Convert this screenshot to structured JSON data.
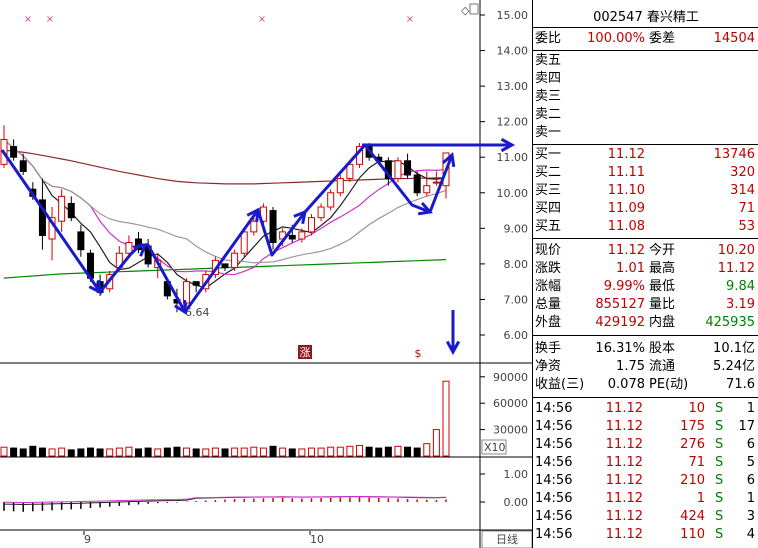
{
  "stock": {
    "code": "002547",
    "name": "春兴精工"
  },
  "weibi": {
    "label": "委比",
    "value": "100.00%",
    "label2": "委差",
    "value2": "14504"
  },
  "sell": [
    {
      "label": "卖五"
    },
    {
      "label": "卖四"
    },
    {
      "label": "卖三"
    },
    {
      "label": "卖二"
    },
    {
      "label": "卖一"
    }
  ],
  "buy": [
    {
      "label": "买一",
      "price": "11.12",
      "vol": "13746"
    },
    {
      "label": "买二",
      "price": "11.11",
      "vol": "320"
    },
    {
      "label": "买三",
      "price": "11.10",
      "vol": "314"
    },
    {
      "label": "买四",
      "price": "11.09",
      "vol": "71"
    },
    {
      "label": "买五",
      "price": "11.08",
      "vol": "53"
    }
  ],
  "quote": [
    {
      "l1": "现价",
      "v1": "11.12",
      "l2": "今开",
      "v2": "10.20"
    },
    {
      "l1": "涨跌",
      "v1": "1.01",
      "l2": "最高",
      "v2": "11.12"
    },
    {
      "l1": "涨幅",
      "v1": "9.99%",
      "l2": "最低",
      "v2": "9.84"
    },
    {
      "l1": "总量",
      "v1": "855127",
      "l2": "量比",
      "v2": "3.19"
    },
    {
      "l1": "外盘",
      "v1": "429192",
      "l2": "内盘",
      "v2": "425935"
    }
  ],
  "fund": [
    {
      "l1": "换手",
      "v1": "16.31%",
      "l2": "股本",
      "v2": "10.1亿"
    },
    {
      "l1": "净资",
      "v1": "1.75",
      "l2": "流通",
      "v2": "5.24亿"
    },
    {
      "l1": "收益(三)",
      "v1": "0.078",
      "l2": "PE(动)",
      "v2": "71.6"
    }
  ],
  "ticks": [
    {
      "time": "14:56",
      "price": "11.12",
      "vol": "10",
      "side": "S",
      "n": "1"
    },
    {
      "time": "14:56",
      "price": "11.12",
      "vol": "175",
      "side": "S",
      "n": "17"
    },
    {
      "time": "14:56",
      "price": "11.12",
      "vol": "276",
      "side": "S",
      "n": "6"
    },
    {
      "time": "14:56",
      "price": "11.12",
      "vol": "71",
      "side": "S",
      "n": "5"
    },
    {
      "time": "14:56",
      "price": "11.12",
      "vol": "210",
      "side": "S",
      "n": "6"
    },
    {
      "time": "14:56",
      "price": "11.12",
      "vol": "1",
      "side": "S",
      "n": "1"
    },
    {
      "time": "14:56",
      "price": "11.12",
      "vol": "424",
      "side": "S",
      "n": "3"
    },
    {
      "time": "14:56",
      "price": "11.12",
      "vol": "110",
      "side": "S",
      "n": "4"
    }
  ],
  "price_axis": [
    "15.00",
    "14.00",
    "13.00",
    "12.00",
    "11.00",
    "10.00",
    "9.00",
    "8.00",
    "7.00",
    "6.00"
  ],
  "vol_axis": [
    "90000",
    "60000",
    "30000"
  ],
  "vol_unit": "X10",
  "macd_axis": [
    "1.00",
    "0.00"
  ],
  "x_axis": [
    "9",
    "10"
  ],
  "low_label": "6.64",
  "badges": [
    "涨",
    "$"
  ],
  "period_btn": "日线",
  "colors": {
    "up": "#d40000",
    "down": "#000000",
    "arrow": "#1a1acc"
  },
  "chart_data": {
    "type": "candlestick",
    "ylim": [
      6.0,
      15.0
    ],
    "candles": [
      {
        "o": 10.8,
        "h": 11.9,
        "l": 10.7,
        "c": 11.5
      },
      {
        "o": 11.3,
        "h": 11.5,
        "l": 10.9,
        "c": 11.0
      },
      {
        "o": 10.9,
        "h": 11.1,
        "l": 10.5,
        "c": 10.6
      },
      {
        "o": 10.1,
        "h": 10.3,
        "l": 9.8,
        "c": 9.9
      },
      {
        "o": 9.8,
        "h": 10.4,
        "l": 8.4,
        "c": 8.8
      },
      {
        "o": 8.7,
        "h": 9.6,
        "l": 8.1,
        "c": 9.3
      },
      {
        "o": 9.2,
        "h": 10.1,
        "l": 8.9,
        "c": 9.9
      },
      {
        "o": 9.7,
        "h": 9.9,
        "l": 9.2,
        "c": 9.3
      },
      {
        "o": 8.9,
        "h": 9.1,
        "l": 8.2,
        "c": 8.4
      },
      {
        "o": 8.3,
        "h": 8.4,
        "l": 7.5,
        "c": 7.6
      },
      {
        "o": 7.5,
        "h": 7.7,
        "l": 7.1,
        "c": 7.2
      },
      {
        "o": 7.3,
        "h": 7.8,
        "l": 7.2,
        "c": 7.7
      },
      {
        "o": 7.9,
        "h": 8.5,
        "l": 7.8,
        "c": 8.3
      },
      {
        "o": 8.3,
        "h": 8.8,
        "l": 8.2,
        "c": 8.6
      },
      {
        "o": 8.7,
        "h": 8.9,
        "l": 8.3,
        "c": 8.4
      },
      {
        "o": 8.5,
        "h": 8.7,
        "l": 7.9,
        "c": 8.0
      },
      {
        "o": 7.9,
        "h": 8.3,
        "l": 7.6,
        "c": 8.1
      },
      {
        "o": 7.5,
        "h": 7.6,
        "l": 7.0,
        "c": 7.1
      },
      {
        "o": 7.0,
        "h": 7.3,
        "l": 6.64,
        "c": 6.9
      },
      {
        "o": 6.9,
        "h": 7.6,
        "l": 6.8,
        "c": 7.5
      },
      {
        "o": 7.5,
        "h": 7.5,
        "l": 7.2,
        "c": 7.4
      },
      {
        "o": 7.3,
        "h": 7.8,
        "l": 7.2,
        "c": 7.7
      },
      {
        "o": 7.7,
        "h": 8.2,
        "l": 7.6,
        "c": 8.1
      },
      {
        "o": 8.0,
        "h": 8.0,
        "l": 7.8,
        "c": 7.9
      },
      {
        "o": 7.9,
        "h": 8.4,
        "l": 7.8,
        "c": 8.3
      },
      {
        "o": 8.3,
        "h": 9.0,
        "l": 8.2,
        "c": 8.9
      },
      {
        "o": 8.9,
        "h": 9.3,
        "l": 8.8,
        "c": 9.2
      },
      {
        "o": 9.2,
        "h": 9.7,
        "l": 9.1,
        "c": 9.6
      },
      {
        "o": 9.5,
        "h": 9.6,
        "l": 8.4,
        "c": 8.6
      },
      {
        "o": 8.7,
        "h": 9.0,
        "l": 8.5,
        "c": 8.9
      },
      {
        "o": 8.8,
        "h": 9.1,
        "l": 8.6,
        "c": 8.7
      },
      {
        "o": 8.7,
        "h": 9.0,
        "l": 8.6,
        "c": 8.9
      },
      {
        "o": 8.9,
        "h": 9.4,
        "l": 8.8,
        "c": 9.3
      },
      {
        "o": 9.3,
        "h": 9.7,
        "l": 9.2,
        "c": 9.6
      },
      {
        "o": 9.6,
        "h": 10.1,
        "l": 9.5,
        "c": 10.0
      },
      {
        "o": 10.0,
        "h": 10.5,
        "l": 9.9,
        "c": 10.4
      },
      {
        "o": 10.4,
        "h": 10.9,
        "l": 10.3,
        "c": 10.8
      },
      {
        "o": 10.8,
        "h": 11.4,
        "l": 10.7,
        "c": 11.3
      },
      {
        "o": 11.3,
        "h": 11.4,
        "l": 10.9,
        "c": 11.0
      },
      {
        "o": 11.0,
        "h": 11.1,
        "l": 10.8,
        "c": 10.9
      },
      {
        "o": 10.9,
        "h": 11.0,
        "l": 10.2,
        "c": 10.4
      },
      {
        "o": 10.4,
        "h": 11.0,
        "l": 10.3,
        "c": 10.9
      },
      {
        "o": 10.9,
        "h": 11.1,
        "l": 10.4,
        "c": 10.5
      },
      {
        "o": 10.5,
        "h": 10.6,
        "l": 9.9,
        "c": 10.0
      },
      {
        "o": 10.0,
        "h": 10.6,
        "l": 9.9,
        "c": 10.2
      },
      {
        "o": 10.3,
        "h": 10.6,
        "l": 10.2,
        "c": 10.3
      },
      {
        "o": 10.2,
        "h": 11.12,
        "l": 9.84,
        "c": 11.12
      }
    ],
    "volume": [
      10,
      9,
      8,
      11,
      9,
      8,
      9,
      7,
      8,
      9,
      8,
      8,
      9,
      10,
      8,
      9,
      8,
      9,
      10,
      9,
      8,
      8,
      9,
      8,
      9,
      9,
      10,
      9,
      11,
      9,
      8,
      8,
      9,
      9,
      10,
      10,
      11,
      12,
      10,
      9,
      10,
      11,
      10,
      9,
      14,
      30,
      85
    ],
    "volume_ylim": [
      0,
      100000
    ],
    "volume_unit": "x10",
    "macd": [
      -0.9,
      -0.95,
      -1.0,
      -0.95,
      -0.9,
      -0.85,
      -0.8,
      -0.75,
      -0.7,
      -0.62,
      -0.55,
      -0.48,
      -0.4,
      -0.32,
      -0.25,
      -0.18,
      -0.12,
      -0.08,
      -0.05,
      0.05,
      0.1,
      0.15,
      0.2,
      0.25,
      0.3,
      0.32,
      0.35,
      0.38,
      0.4,
      0.42,
      0.38,
      0.36,
      0.38,
      0.4,
      0.42,
      0.45,
      0.48,
      0.5,
      0.45,
      0.42,
      0.38,
      0.36,
      0.3,
      0.25,
      0.22,
      0.2,
      0.26
    ],
    "ma_long": [
      11.2,
      11.17,
      11.14,
      11.1,
      11.05,
      11.0,
      10.95,
      10.9,
      10.84,
      10.78,
      10.72,
      10.66,
      10.6,
      10.55,
      10.5,
      10.45,
      10.4,
      10.36,
      10.32,
      10.3,
      10.28,
      10.27,
      10.26,
      10.25,
      10.25,
      10.25,
      10.25,
      10.26,
      10.27,
      10.28,
      10.29,
      10.3,
      10.31,
      10.32,
      10.33,
      10.34,
      10.35,
      10.36,
      10.37,
      10.38,
      10.39,
      10.4,
      10.4,
      10.41,
      10.41,
      10.42,
      10.42
    ],
    "ma_green": [
      7.6,
      7.62,
      7.64,
      7.66,
      7.68,
      7.7,
      7.72,
      7.73,
      7.74,
      7.75,
      7.76,
      7.77,
      7.78,
      7.79,
      7.8,
      7.81,
      7.82,
      7.83,
      7.84,
      7.85,
      7.86,
      7.87,
      7.88,
      7.89,
      7.9,
      7.91,
      7.92,
      7.93,
      7.94,
      7.95,
      7.96,
      7.97,
      7.98,
      7.99,
      8.0,
      8.01,
      8.02,
      8.03,
      8.04,
      8.05,
      8.06,
      8.07,
      8.08,
      8.09,
      8.1,
      8.11,
      8.12
    ]
  }
}
